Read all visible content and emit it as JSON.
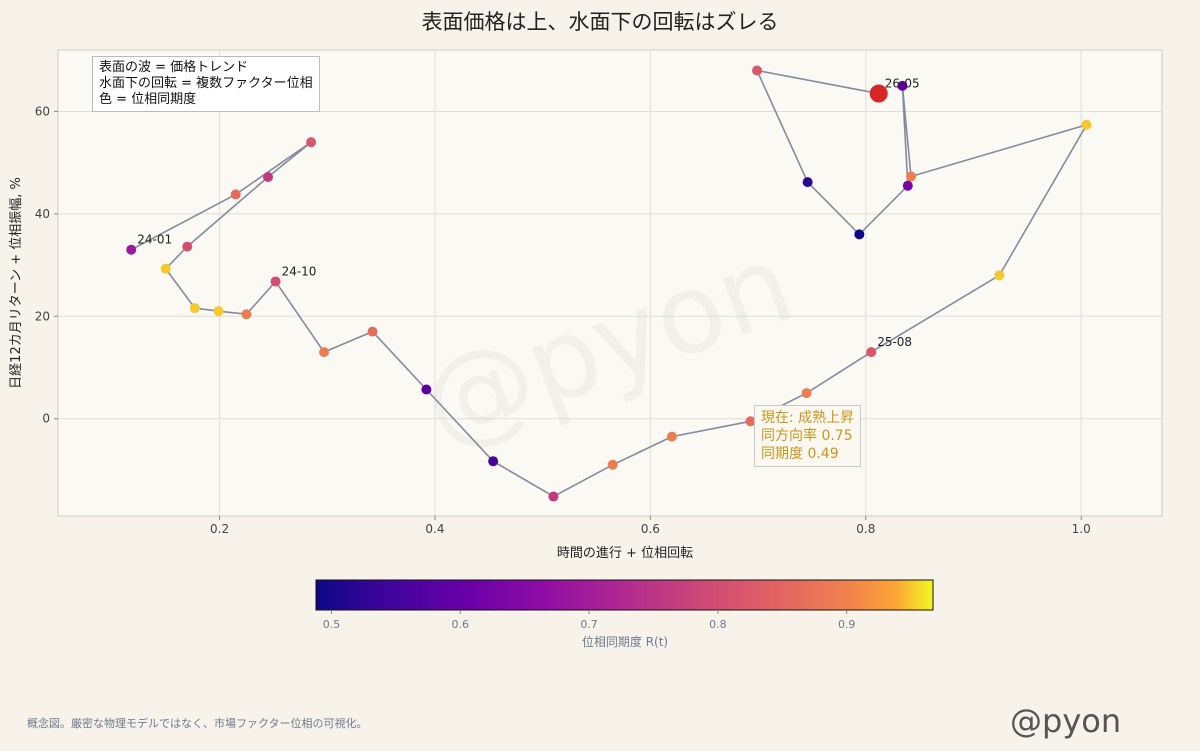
{
  "chart_data": {
    "type": "scatter",
    "title": "表面価格は上、水面下の回転はズレる",
    "xlabel": "時間の進行 + 位相回転",
    "ylabel": "日経12カ月リターン + 位相振幅, %",
    "xlim": [
      0.05,
      1.075
    ],
    "ylim": [
      -19,
      72
    ],
    "xticks": [
      0.2,
      0.4,
      0.6,
      0.8,
      1.0
    ],
    "xtick_labels": [
      "0.2",
      "0.4",
      "0.6",
      "0.8",
      "1.0"
    ],
    "yticks": [
      0,
      20,
      40,
      60
    ],
    "ytick_labels": [
      "0",
      "20",
      "40",
      "60"
    ],
    "grid": true,
    "colormap": "plasma",
    "colorbar": {
      "label": "位相同期度 R(t)",
      "range": [
        0.488,
        0.967
      ],
      "ticks": [
        0.5,
        0.6,
        0.7,
        0.8,
        0.9
      ],
      "tick_labels": [
        "0.5",
        "0.6",
        "0.7",
        "0.8",
        "0.9"
      ]
    },
    "line_color": "#848b9c",
    "points": [
      {
        "x": 0.118,
        "y": 33.0,
        "r": 0.69
      },
      {
        "x": 0.215,
        "y": 43.8,
        "r": 0.86
      },
      {
        "x": 0.285,
        "y": 54.0,
        "r": 0.82
      },
      {
        "x": 0.245,
        "y": 47.2,
        "r": 0.76
      },
      {
        "x": 0.17,
        "y": 33.6,
        "r": 0.8
      },
      {
        "x": 0.15,
        "y": 29.3,
        "r": 0.95
      },
      {
        "x": 0.177,
        "y": 21.6,
        "r": 0.95
      },
      {
        "x": 0.199,
        "y": 21.0,
        "r": 0.95
      },
      {
        "x": 0.225,
        "y": 20.4,
        "r": 0.89
      },
      {
        "x": 0.252,
        "y": 26.8,
        "r": 0.8
      },
      {
        "x": 0.297,
        "y": 13.0,
        "r": 0.89
      },
      {
        "x": 0.342,
        "y": 17.0,
        "r": 0.86
      },
      {
        "x": 0.392,
        "y": 5.7,
        "r": 0.58
      },
      {
        "x": 0.454,
        "y": -8.3,
        "r": 0.55
      },
      {
        "x": 0.51,
        "y": -15.2,
        "r": 0.76
      },
      {
        "x": 0.565,
        "y": -9.0,
        "r": 0.89
      },
      {
        "x": 0.62,
        "y": -3.5,
        "r": 0.89
      },
      {
        "x": 0.693,
        "y": -0.5,
        "r": 0.86
      },
      {
        "x": 0.745,
        "y": 5.0,
        "r": 0.89
      },
      {
        "x": 0.805,
        "y": 13.0,
        "r": 0.82
      },
      {
        "x": 0.924,
        "y": 28.0,
        "r": 0.95
      },
      {
        "x": 1.005,
        "y": 57.4,
        "r": 0.95
      },
      {
        "x": 0.842,
        "y": 47.3,
        "r": 0.89
      },
      {
        "x": 0.834,
        "y": 65.0,
        "r": 0.6
      },
      {
        "x": 0.839,
        "y": 45.5,
        "r": 0.63
      },
      {
        "x": 0.794,
        "y": 36.0,
        "r": 0.49
      },
      {
        "x": 0.746,
        "y": 46.2,
        "r": 0.52
      },
      {
        "x": 0.699,
        "y": 68.0,
        "r": 0.82
      }
    ],
    "current_point": {
      "x": 0.812,
      "y": 63.5,
      "color": "#d62728"
    },
    "point_labels": [
      {
        "text": "24-01",
        "x": 0.118,
        "y": 33.0
      },
      {
        "text": "24-10",
        "x": 0.252,
        "y": 26.8
      },
      {
        "text": "25-08",
        "x": 0.805,
        "y": 13.0
      },
      {
        "text": "26-05",
        "x": 0.812,
        "y": 63.5
      }
    ]
  },
  "legend_box": {
    "lines": [
      "表面の波 = 価格トレンド",
      "水面下の回転 = 複数ファクター位相",
      "色 = 位相同期度"
    ]
  },
  "status_box": {
    "lines": [
      "現在: 成熟上昇",
      "同方向率 0.75",
      "同期度 0.49"
    ],
    "color": "#c9961c"
  },
  "watermark": "@pyon",
  "handle": "@pyon",
  "footnote": "概念図。厳密な物理モデルではなく、市場ファクター位相の可視化。"
}
